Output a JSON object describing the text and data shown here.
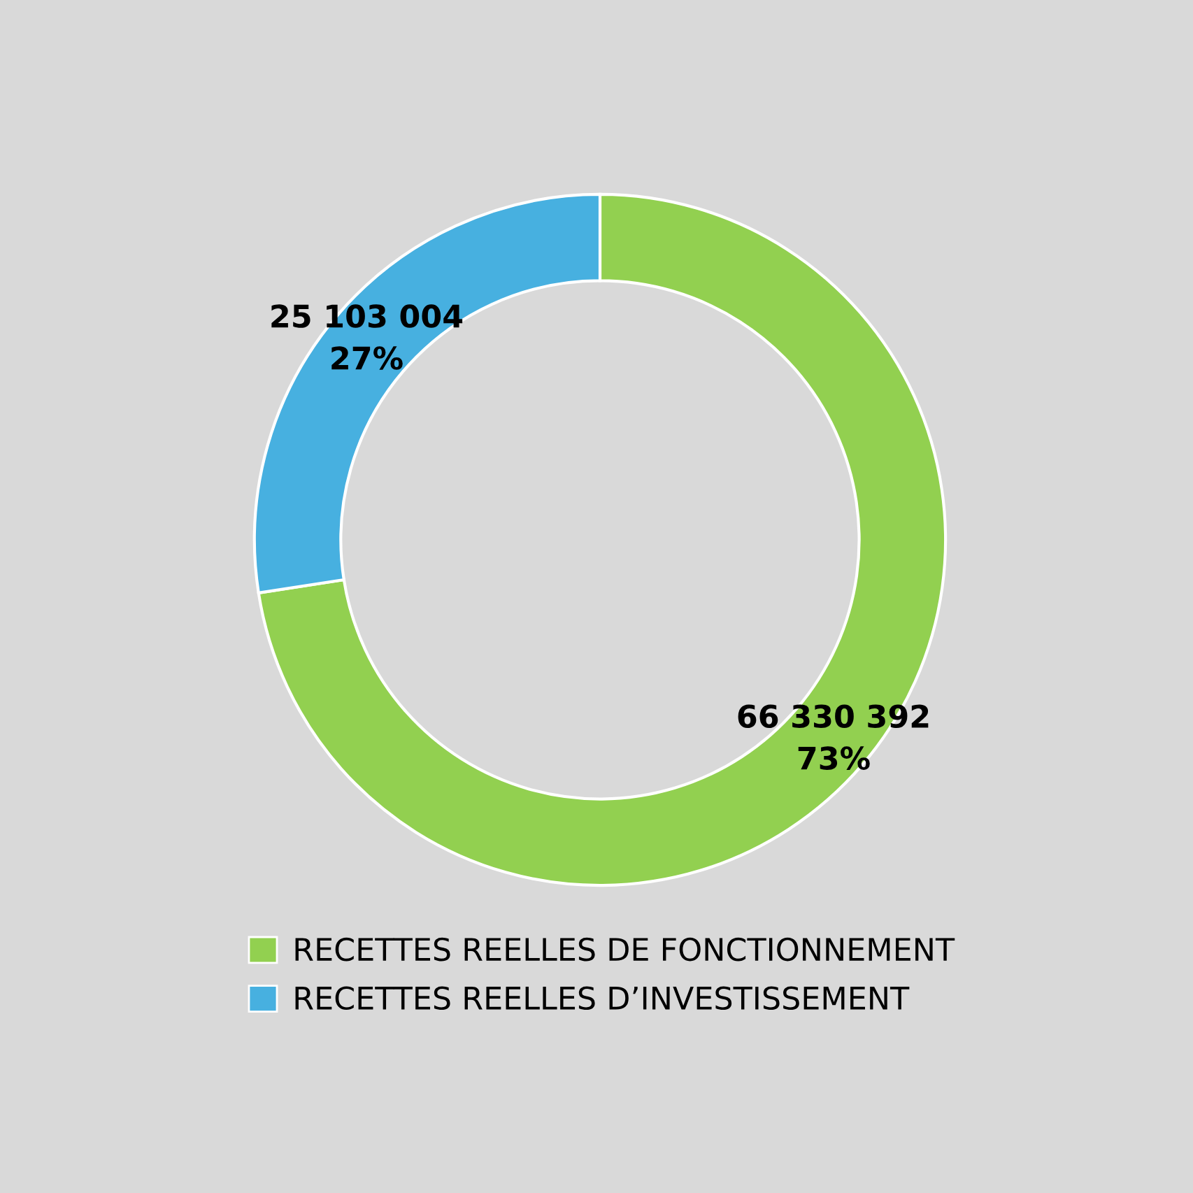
{
  "chart_data": {
    "type": "donut",
    "categories": [
      "RECETTES REELLES DE FONCTIONNEMENT",
      "RECETTES REELLES D’INVESTISSEMENT"
    ],
    "values": [
      66330392,
      25103004
    ],
    "colors": [
      "#92d050",
      "#47b0e0"
    ],
    "value_labels": [
      "66 330 392\n73%",
      "25 103 004\n27%"
    ],
    "legend": "bottom"
  }
}
